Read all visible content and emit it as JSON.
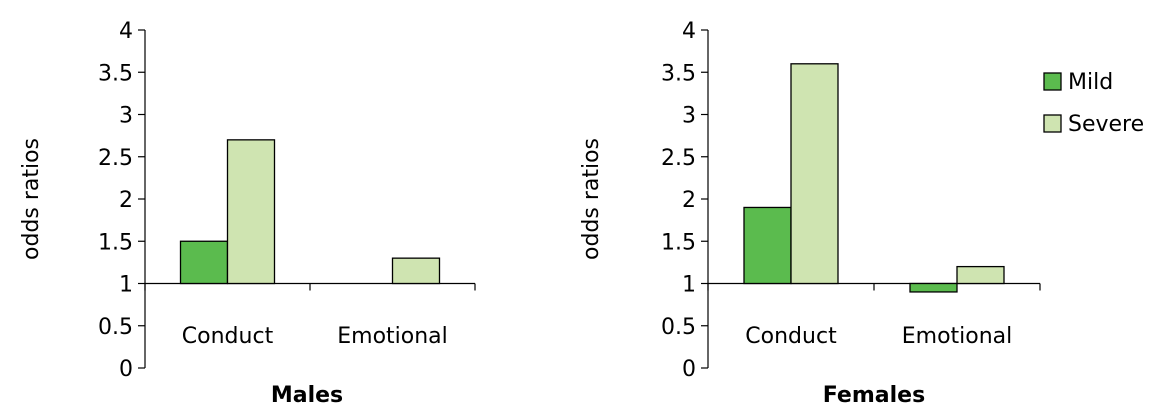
{
  "chart_data": [
    {
      "type": "bar",
      "title": "Males",
      "ylabel": "odds ratios",
      "categories": [
        "Conduct",
        "Emotional"
      ],
      "ylim": [
        0,
        4
      ],
      "yticks": [
        "0",
        "0.5",
        "1",
        "1.5",
        "2",
        "2.5",
        "3",
        "3.5",
        "4"
      ],
      "baseline": 1,
      "series": [
        {
          "name": "Mild",
          "values": [
            1.5,
            1.0
          ]
        },
        {
          "name": "Severe",
          "values": [
            2.7,
            1.3
          ]
        }
      ]
    },
    {
      "type": "bar",
      "title": "Females",
      "ylabel": "odds ratios",
      "categories": [
        "Conduct",
        "Emotional"
      ],
      "ylim": [
        0,
        4
      ],
      "yticks": [
        "0",
        "0.5",
        "1",
        "1.5",
        "2",
        "2.5",
        "3",
        "3.5",
        "4"
      ],
      "baseline": 1,
      "series": [
        {
          "name": "Mild",
          "values": [
            1.9,
            0.9
          ]
        },
        {
          "name": "Severe",
          "values": [
            3.6,
            1.2
          ]
        }
      ]
    }
  ],
  "legend": {
    "placement": "right",
    "items": [
      {
        "label": "Mild",
        "color": "#5bbb4e"
      },
      {
        "label": "Severe",
        "color": "#cfe4b1"
      }
    ]
  },
  "colors": {
    "Mild": "#5bbb4e",
    "Severe": "#cfe4b1",
    "outline": "#000000",
    "axis": "#000000"
  }
}
